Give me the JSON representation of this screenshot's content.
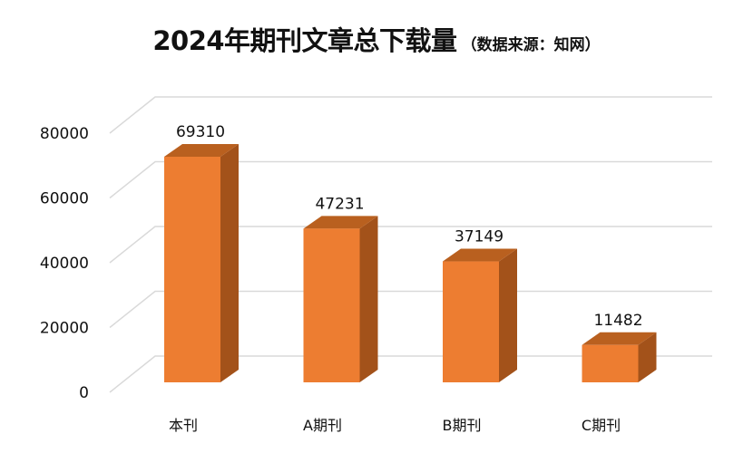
{
  "chart_data": {
    "type": "bar",
    "title": "2024年期刊文章总下载量",
    "subtitle": "（数据来源：知网）",
    "categories": [
      "本刊",
      "A期刊",
      "B期刊",
      "C期刊"
    ],
    "values": [
      69310,
      47231,
      37149,
      11482
    ],
    "xlabel": "",
    "ylabel": "",
    "ylim": [
      0,
      80000
    ],
    "yticks": [
      "0",
      "20000",
      "40000",
      "60000",
      "80000"
    ],
    "ytick_values": [
      0,
      20000,
      40000,
      60000,
      80000
    ],
    "grid": true,
    "style": "3d-column",
    "legend": "none",
    "colors": {
      "front": "#ED7D31",
      "top": "#B9601F",
      "side": "#A3521A",
      "grid": "#D9D9D9"
    }
  }
}
